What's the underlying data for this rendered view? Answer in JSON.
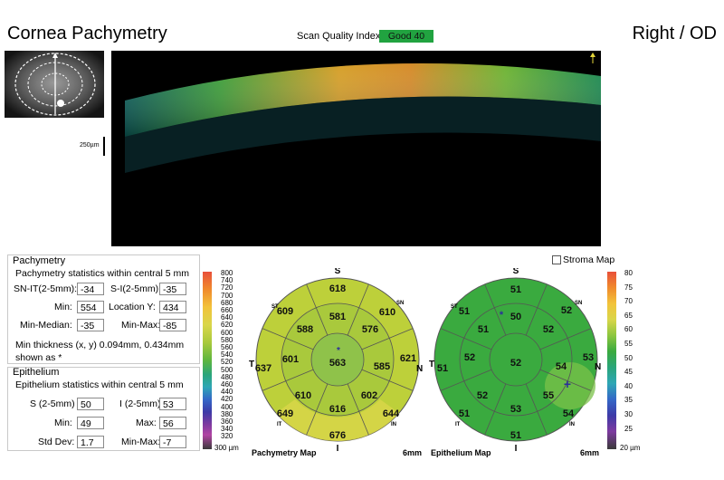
{
  "header": {
    "title": "Cornea Pachymetry",
    "eye": "Right / OD",
    "scan_quality_label": "Scan Quality Index",
    "scan_quality_value": "Good  40",
    "scale_label": "250µm"
  },
  "pachymetry": {
    "title": "Pachymetry",
    "subtitle": "Pachymetry statistics within central 5 mm",
    "sn_it_label": "SN-IT(2-5mm):",
    "sn_it_value": "-34",
    "s_i_label": "S-I(2-5mm):",
    "s_i_value": "-35",
    "min_label": "Min:",
    "min_value": "554",
    "location_y_label": "Location Y:",
    "location_y_value": "434",
    "min_median_label": "Min-Median:",
    "min_median_value": "-35",
    "min_max_label": "Min-Max:",
    "min_max_value": "-85",
    "min_thickness_note_1": "Min thickness (x, y) 0.094mm, 0.434mm",
    "min_thickness_note_2": "shown as *"
  },
  "epithelium": {
    "title": "Epithelium",
    "subtitle": "Epithelium statistics within central 5 mm",
    "s_label": "S (2-5mm)",
    "s_value": "50",
    "i_label": "I (2-5mm)",
    "i_value": "53",
    "min_label": "Min:",
    "min_value": "49",
    "max_label": "Max:",
    "max_value": "56",
    "std_label": "Std Dev:",
    "std_value": "1.7",
    "min_max_label": "Min-Max:",
    "min_max_value": "-7"
  },
  "pachy_colorbar": {
    "ticks": [
      "800",
      "740",
      "720",
      "700",
      "680",
      "660",
      "640",
      "620",
      "600",
      "580",
      "560",
      "540",
      "520",
      "500",
      "480",
      "460",
      "440",
      "420",
      "400",
      "380",
      "360",
      "340",
      "320"
    ],
    "bottom": "300 µm"
  },
  "epi_colorbar": {
    "ticks": [
      "80",
      "75",
      "70",
      "65",
      "60",
      "55",
      "50",
      "45",
      "40",
      "35",
      "30",
      "25"
    ],
    "bottom": "20 µm"
  },
  "stroma": {
    "label": "Stroma Map",
    "checked": false
  },
  "pachy_map": {
    "label": "Pachymetry Map",
    "diameter": "6mm",
    "center": "563",
    "inner": {
      "S": "581",
      "SN": "576",
      "N": "585",
      "IN": "602",
      "I": "616",
      "IT": "610",
      "T": "601",
      "ST": "588"
    },
    "outer": {
      "S": "618",
      "SN": "610",
      "N": "621",
      "IN": "644",
      "I": "676",
      "IT": "649",
      "T": "637",
      "ST": "609"
    },
    "orient": {
      "S": "S",
      "I": "I",
      "T": "T",
      "N": "N",
      "SN": "SN",
      "ST": "ST",
      "IN": "IN",
      "IT": "IT"
    },
    "colors": {
      "outer": "#bdd03a",
      "inner": "#a9c93c",
      "center": "#8fc24a",
      "bottom": "#d9d64a"
    }
  },
  "epi_map": {
    "label": "Epithelium Map",
    "diameter": "6mm",
    "center": "52",
    "inner": {
      "S": "50",
      "SN": "52",
      "N": "54",
      "IN": "55",
      "I": "53",
      "IT": "52",
      "T": "52",
      "ST": "51"
    },
    "outer": {
      "S": "51",
      "SN": "52",
      "N": "53",
      "IN": "54",
      "I": "51",
      "IT": "51",
      "T": "51",
      "ST": "51"
    },
    "orient": {
      "S": "S",
      "I": "I",
      "T": "T",
      "N": "N",
      "SN": "SN",
      "ST": "ST",
      "IN": "IN",
      "IT": "IT"
    },
    "colors": {
      "fill": "#3aaa3f",
      "highlight": "#7bc24a",
      "marker": "#2b2f9a"
    }
  }
}
